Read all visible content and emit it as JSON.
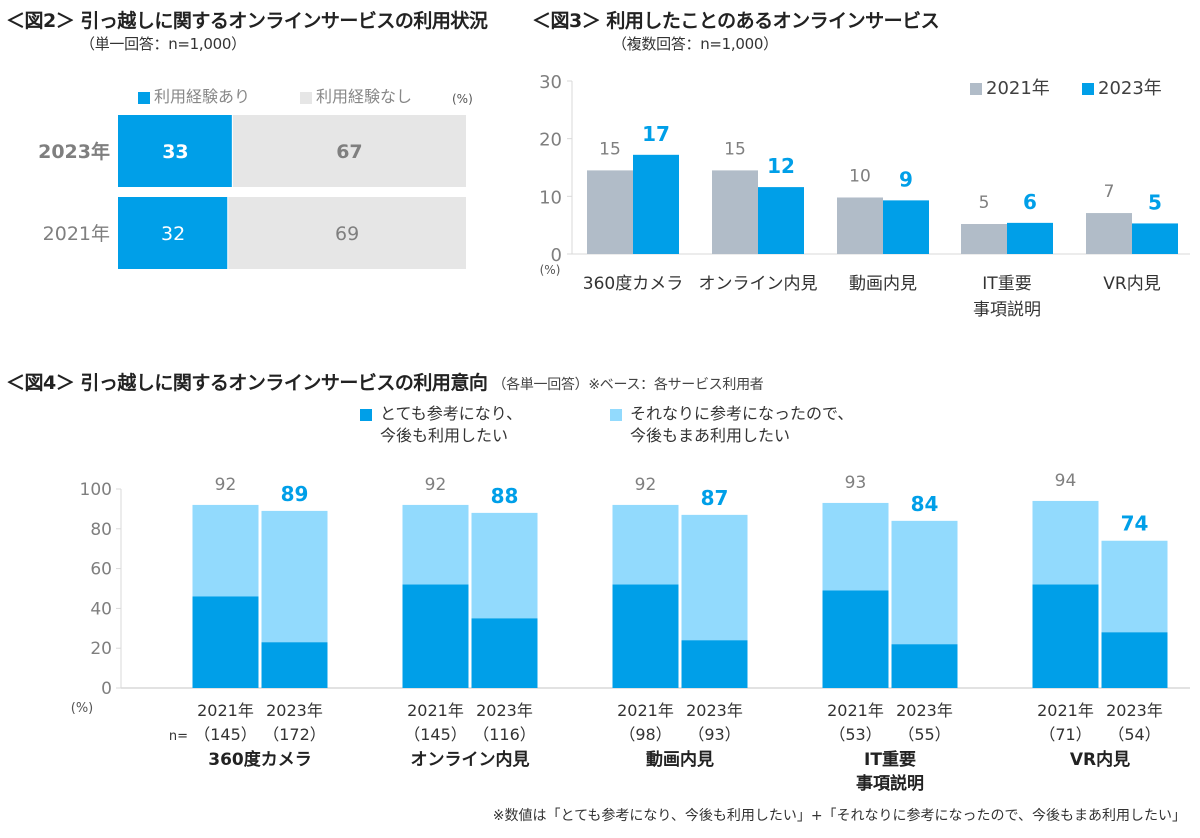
{
  "colors": {
    "blue": "#009FE8",
    "gray_bar": "#E6E6E6",
    "gray_2021": "#B1BCC8",
    "light_blue": "#92DAFD",
    "axis": "#D9D9D9",
    "tick_text": "#7F7F7F"
  },
  "chart_data": [
    {
      "id": "fig2",
      "type": "bar",
      "orientation": "horizontal-stacked",
      "title": "＜図2＞ 引っ越しに関するオンラインサービスの利用状況",
      "subtitle": "（単一回答：n=1,000）",
      "unit": "(%)",
      "categories": [
        "2023年",
        "2021年"
      ],
      "series": [
        {
          "name": "利用経験あり",
          "values": [
            33,
            32
          ]
        },
        {
          "name": "利用経験なし",
          "values": [
            67,
            69
          ]
        }
      ],
      "xlim": [
        0,
        100
      ]
    },
    {
      "id": "fig3",
      "type": "bar",
      "title": "＜図3＞ 利用したことのあるオンラインサービス",
      "subtitle": "（複数回答：n=1,000）",
      "ylabel": "(%)",
      "ylim": [
        0,
        30
      ],
      "yticks": [
        0,
        10,
        20,
        30
      ],
      "categories": [
        "360度カメラ",
        "オンライン内見",
        "動画内見",
        "IT重要\n事項説明",
        "VR内見"
      ],
      "category_lines": [
        [
          "360度カメラ"
        ],
        [
          "オンライン内見"
        ],
        [
          "動画内見"
        ],
        [
          "IT重要",
          "事項説明"
        ],
        [
          "VR内見"
        ]
      ],
      "legend": "top-right",
      "series": [
        {
          "name": "2021年",
          "values": [
            15,
            15,
            10,
            5,
            7
          ],
          "bar_values": [
            14.5,
            14.5,
            9.8,
            5.2,
            7.1
          ]
        },
        {
          "name": "2023年",
          "values": [
            17,
            12,
            9,
            6,
            5
          ],
          "bar_values": [
            17.2,
            11.6,
            9.3,
            5.4,
            5.3
          ]
        }
      ]
    },
    {
      "id": "fig4",
      "type": "bar",
      "orientation": "vertical-stacked-grouped",
      "title": "＜図4＞ 引っ越しに関するオンラインサービスの利用意向",
      "title_note": "（各単一回答）※ベース：各サービス利用者",
      "ylabel": "(%)",
      "ylim": [
        0,
        100
      ],
      "yticks": [
        0,
        20,
        40,
        60,
        80,
        100
      ],
      "legend": [
        {
          "lines": [
            "とても参考になり、",
            "今後も利用したい"
          ]
        },
        {
          "lines": [
            "それなりに参考になったので、",
            "今後もまあ利用したい"
          ]
        }
      ],
      "n_prefix": "n=",
      "groups": [
        {
          "name_lines": [
            "360度カメラ"
          ],
          "bars": [
            {
              "year": "2021年",
              "n": "（145）",
              "dark": 46,
              "total": 92
            },
            {
              "year": "2023年",
              "n": "（172）",
              "dark": 23,
              "total": 89
            }
          ]
        },
        {
          "name_lines": [
            "オンライン内見"
          ],
          "bars": [
            {
              "year": "2021年",
              "n": "（145）",
              "dark": 52,
              "total": 92
            },
            {
              "year": "2023年",
              "n": "（116）",
              "dark": 35,
              "total": 88
            }
          ]
        },
        {
          "name_lines": [
            "動画内見"
          ],
          "bars": [
            {
              "year": "2021年",
              "n": "（98）",
              "dark": 52,
              "total": 92
            },
            {
              "year": "2023年",
              "n": "（93）",
              "dark": 24,
              "total": 87
            }
          ]
        },
        {
          "name_lines": [
            "IT重要",
            "事項説明"
          ],
          "bars": [
            {
              "year": "2021年",
              "n": "（53）",
              "dark": 49,
              "total": 93
            },
            {
              "year": "2023年",
              "n": "（55）",
              "dark": 22,
              "total": 84
            }
          ]
        },
        {
          "name_lines": [
            "VR内見"
          ],
          "bars": [
            {
              "year": "2021年",
              "n": "（71）",
              "dark": 52,
              "total": 94
            },
            {
              "year": "2023年",
              "n": "（54）",
              "dark": 28,
              "total": 74
            }
          ]
        }
      ],
      "footnote": "※数値は「とても参考になり、今後も利用したい」+「それなりに参考になったので、今後もまあ利用したい」"
    }
  ]
}
